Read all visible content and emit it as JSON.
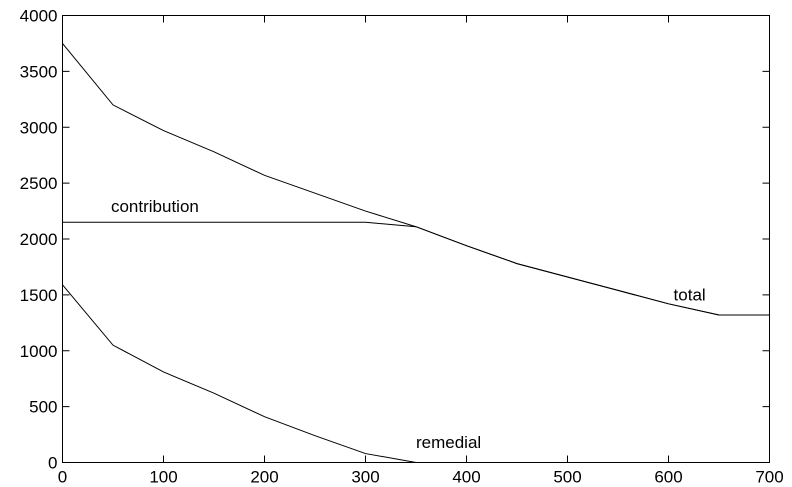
{
  "chart_data": {
    "type": "line",
    "title": "",
    "xlabel": "",
    "ylabel": "",
    "xlim": [
      0,
      700
    ],
    "ylim": [
      0,
      4000
    ],
    "xticks": [
      0,
      100,
      200,
      300,
      400,
      500,
      600,
      700
    ],
    "yticks": [
      0,
      500,
      1000,
      1500,
      2000,
      2500,
      3000,
      3500,
      4000
    ],
    "grid": false,
    "legend": "none",
    "series": [
      {
        "key": "total",
        "x": [
          0,
          50,
          100,
          150,
          200,
          250,
          300,
          350,
          400,
          450,
          500,
          550,
          600,
          650,
          700
        ],
        "y": [
          3750,
          3200,
          2970,
          2780,
          2570,
          2410,
          2250,
          2110,
          1940,
          1780,
          1660,
          1540,
          1420,
          1320,
          1320
        ]
      },
      {
        "key": "contribution",
        "x": [
          0,
          50,
          100,
          150,
          200,
          250,
          300,
          350,
          400,
          450,
          500,
          550,
          600,
          650,
          700
        ],
        "y": [
          2150,
          2150,
          2150,
          2150,
          2150,
          2150,
          2150,
          2110,
          1940,
          1780,
          1660,
          1540,
          1420,
          1320,
          1320
        ]
      },
      {
        "key": "remedial",
        "x": [
          0,
          50,
          100,
          150,
          200,
          250,
          300,
          350
        ],
        "y": [
          1590,
          1050,
          810,
          620,
          410,
          240,
          80,
          0
        ]
      }
    ],
    "annotations": [
      {
        "text": "contribution",
        "x": 48,
        "y": 2240
      },
      {
        "text": "total",
        "x": 605,
        "y": 1450
      },
      {
        "text": "remedial",
        "x": 350,
        "y": 130
      }
    ]
  }
}
